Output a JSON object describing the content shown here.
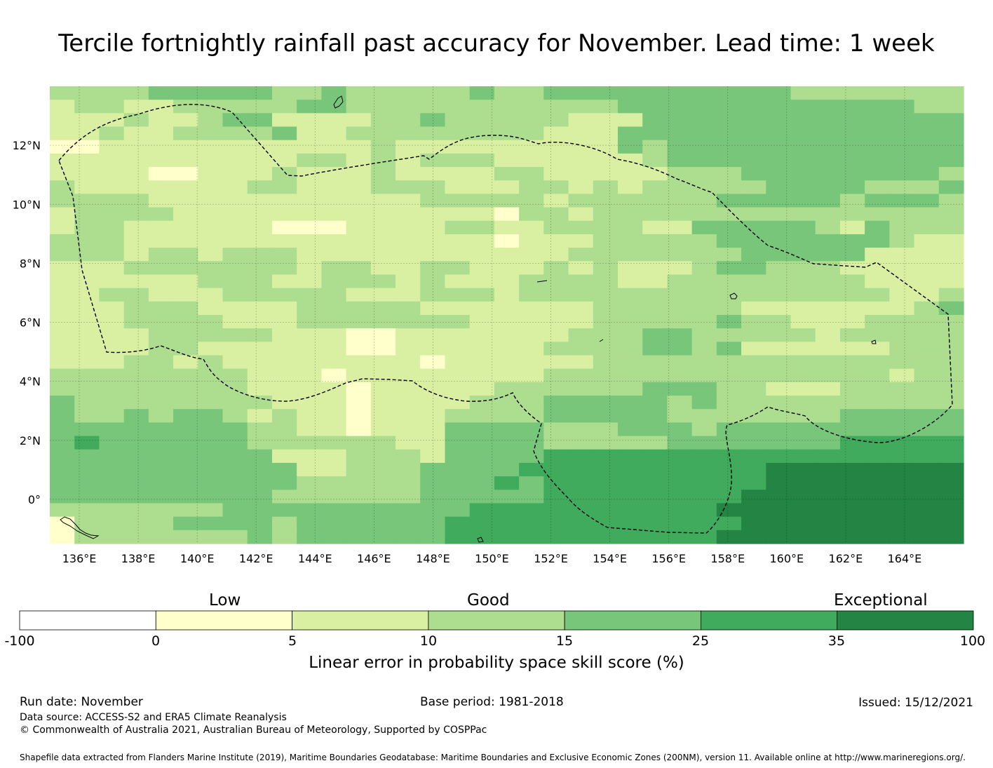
{
  "title": "Tercile fortnightly rainfall past accuracy for November. Lead time: 1 week",
  "map": {
    "lon_range": [
      135,
      166
    ],
    "lat_range": [
      -1.5,
      14
    ],
    "lon_ticks": [
      "136°E",
      "138°E",
      "140°E",
      "142°E",
      "144°E",
      "146°E",
      "148°E",
      "150°E",
      "152°E",
      "154°E",
      "156°E",
      "158°E",
      "160°E",
      "162°E",
      "164°E"
    ],
    "lat_ticks": [
      "12°N",
      "10°N",
      "8°N",
      "6°N",
      "4°N",
      "2°N",
      "0°"
    ],
    "grid": true,
    "boundary": "dashed EEZ outline",
    "skill_grid": [
      "3333444443343333343344444444443333333",
      "2332233333443333333333344444444444433",
      "2223223442222334333332224444444444444",
      "2232233334223333333322244444444444444",
      "1122222222222322222222243444444444444",
      "2222222222332323332222223444444444444",
      "2222112223222322223322222333444444443",
      "3222222233222333222332323333344443334",
      "3333222222222223333323333334444434443",
      "2333322222222222221332333333333333333",
      "2332222221112222332233332244444324333",
      "3332222222222222221222333334444444322",
      "3332332333222222222223333333444442222",
      "2223333333233223322232322234433322222",
      "2222223332233323222333322333333332222",
      "2233222333332223332333333333333333223",
      "2223332222333332222222333333222222234",
      "2223333222333333322222333334332223333",
      "2222333332221122222223334433333233333",
      "2222332222221122222233334434222222333",
      "2223323222222221222222333333333333333",
      "3333333322212222222233333333333333233",
      "3333333322221222223333334443322233333",
      "4333333332221222233344444343333333333",
      "4334344323221222333344444333333344444",
      "4444444433221222444433344434444444444",
      "4544444433333322444433333444444455555",
      "4444444442223332444455555555555555555",
      "4444444444223334444555555555566666666",
      "4444444444333334445455555555566666666",
      "4444444443333334444455555555666666666",
      "3333333444444444455555555556666666666",
      "1333344443444444555555555555666666666",
      "1333333343444444555555555556666666666"
    ]
  },
  "colorbar": {
    "categories": [
      "Low",
      "Good",
      "Exceptional"
    ],
    "ticks": [
      "-100",
      "0",
      "5",
      "10",
      "15",
      "25",
      "35",
      "100"
    ],
    "colors": [
      "#ffffff",
      "#ffffcc",
      "#d9f0a3",
      "#addd8e",
      "#78c679",
      "#41ab5d",
      "#238443"
    ],
    "label": "Linear error in probability space skill score (%)"
  },
  "footer": {
    "run_date": "Run date: November",
    "base_period": "Base period: 1981-2018",
    "issued": "Issued: 15/12/2021",
    "data_source": "Data source: ACCESS-S2 and ERA5 Climate Reanalysis",
    "copyright": "© Commonwealth of Australia 2021, Australian Bureau of Meteorology, Supported by COSPPac",
    "shapefile": "Shapefile data extracted from Flanders Marine Institute (2019), Maritime Boundaries Geodatabase: Maritime Boundaries and Exclusive Economic Zones (200NM), version 11. Available online at http://www.marineregions.org/."
  }
}
